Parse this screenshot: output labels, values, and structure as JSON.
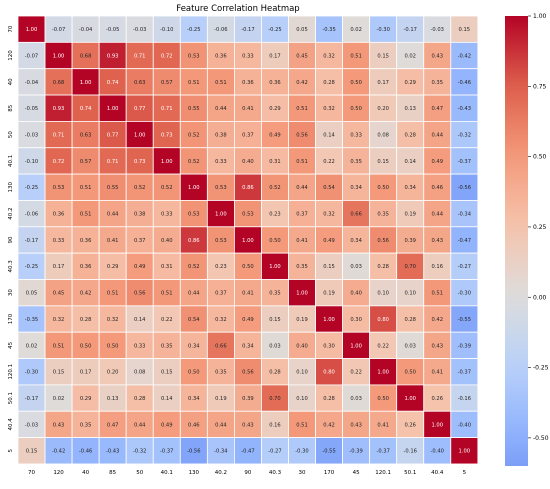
{
  "chart_data": {
    "type": "heatmap",
    "title": "Feature Correlation Heatmap",
    "labels": [
      "70",
      "120",
      "40",
      "85",
      "50",
      "40.1",
      "130",
      "40.2",
      "90",
      "40.3",
      "30",
      "170",
      "45",
      "120.1",
      "50.1",
      "40.4",
      "5"
    ],
    "matrix": [
      [
        1.0,
        -0.07,
        -0.04,
        -0.05,
        -0.03,
        -0.1,
        -0.25,
        -0.06,
        -0.17,
        -0.25,
        0.05,
        -0.35,
        0.02,
        -0.3,
        -0.17,
        -0.03,
        0.15
      ],
      [
        -0.07,
        1.0,
        0.68,
        0.93,
        0.71,
        0.72,
        0.53,
        0.36,
        0.33,
        0.17,
        0.45,
        0.32,
        0.51,
        0.15,
        0.02,
        0.43,
        -0.42
      ],
      [
        -0.04,
        0.68,
        1.0,
        0.74,
        0.63,
        0.57,
        0.51,
        0.51,
        0.36,
        0.36,
        0.42,
        0.28,
        0.5,
        0.17,
        0.29,
        0.35,
        -0.46
      ],
      [
        -0.05,
        0.93,
        0.74,
        1.0,
        0.77,
        0.71,
        0.55,
        0.44,
        0.41,
        0.29,
        0.51,
        0.32,
        0.5,
        0.2,
        0.13,
        0.47,
        -0.43
      ],
      [
        -0.03,
        0.71,
        0.63,
        0.77,
        1.0,
        0.73,
        0.52,
        0.38,
        0.37,
        0.49,
        0.56,
        0.14,
        0.33,
        0.08,
        0.28,
        0.44,
        -0.32
      ],
      [
        -0.1,
        0.72,
        0.57,
        0.71,
        0.73,
        1.0,
        0.52,
        0.33,
        0.4,
        0.31,
        0.51,
        0.22,
        0.35,
        0.15,
        0.14,
        0.49,
        -0.37
      ],
      [
        -0.25,
        0.53,
        0.51,
        0.55,
        0.52,
        0.52,
        1.0,
        0.53,
        0.86,
        0.52,
        0.44,
        0.54,
        0.34,
        0.5,
        0.34,
        0.46,
        -0.56
      ],
      [
        -0.06,
        0.36,
        0.51,
        0.44,
        0.38,
        0.33,
        0.53,
        1.0,
        0.53,
        0.23,
        0.37,
        0.32,
        0.66,
        0.35,
        0.19,
        0.44,
        -0.34
      ],
      [
        -0.17,
        0.33,
        0.36,
        0.41,
        0.37,
        0.4,
        0.86,
        0.53,
        1.0,
        0.5,
        0.41,
        0.49,
        0.34,
        0.56,
        0.39,
        0.43,
        -0.47
      ],
      [
        -0.25,
        0.17,
        0.36,
        0.29,
        0.49,
        0.31,
        0.52,
        0.23,
        0.5,
        1.0,
        0.35,
        0.15,
        0.03,
        0.28,
        0.7,
        0.16,
        -0.27
      ],
      [
        0.05,
        0.45,
        0.42,
        0.51,
        0.56,
        0.51,
        0.44,
        0.37,
        0.41,
        0.35,
        1.0,
        0.19,
        0.4,
        0.1,
        0.1,
        0.51,
        -0.3
      ],
      [
        -0.35,
        0.32,
        0.28,
        0.32,
        0.14,
        0.22,
        0.54,
        0.32,
        0.49,
        0.15,
        0.19,
        1.0,
        0.3,
        0.8,
        0.28,
        0.42,
        -0.55
      ],
      [
        0.02,
        0.51,
        0.5,
        0.5,
        0.33,
        0.35,
        0.34,
        0.66,
        0.34,
        0.03,
        0.4,
        0.3,
        1.0,
        0.22,
        0.03,
        0.43,
        -0.39
      ],
      [
        -0.3,
        0.15,
        0.17,
        0.2,
        0.08,
        0.15,
        0.5,
        0.35,
        0.56,
        0.28,
        0.1,
        0.8,
        0.22,
        1.0,
        0.5,
        0.41,
        -0.37
      ],
      [
        -0.17,
        0.02,
        0.29,
        0.13,
        0.28,
        0.14,
        0.34,
        0.19,
        0.39,
        0.7,
        0.1,
        0.28,
        0.03,
        0.5,
        1.0,
        0.26,
        -0.16
      ],
      [
        -0.03,
        0.43,
        0.35,
        0.47,
        0.44,
        0.49,
        0.46,
        0.44,
        0.43,
        0.16,
        0.51,
        0.42,
        0.43,
        0.41,
        0.26,
        1.0,
        -0.4
      ],
      [
        0.15,
        -0.42,
        -0.46,
        -0.43,
        -0.32,
        -0.37,
        -0.56,
        -0.34,
        -0.47,
        -0.27,
        -0.3,
        -0.55,
        -0.39,
        -0.37,
        -0.16,
        -0.4,
        1.0
      ]
    ],
    "value_format": "2 decimals",
    "vmin": -0.6,
    "vmax": 1.0,
    "center": 0,
    "colormap": "coolwarm",
    "colors": {
      "low": "#3b4cc0",
      "mid": "#dddddd",
      "high": "#b40426",
      "cell_border": "#ffffff"
    },
    "colorbar_ticks": [
      "1.00",
      "0.75",
      "0.50",
      "0.25",
      "0.00",
      "-0.25",
      "-0.50"
    ],
    "colorbar_tick_values": [
      1.0,
      0.75,
      0.5,
      0.25,
      0.0,
      -0.25,
      -0.5
    ],
    "legend": "colorbar right",
    "grid": true,
    "xlabel": "",
    "ylabel": ""
  }
}
